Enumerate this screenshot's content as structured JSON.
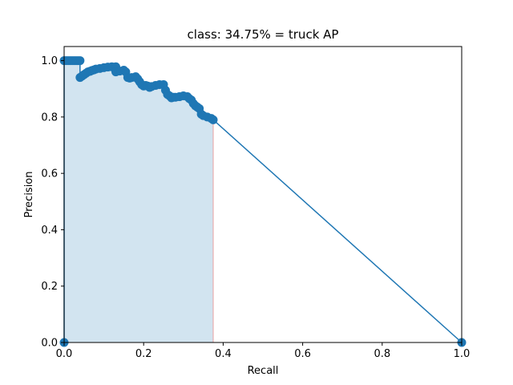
{
  "chart_data": {
    "type": "line",
    "title": "class: 34.75% = truck AP",
    "xlabel": "Recall",
    "ylabel": "Precision",
    "xlim": [
      0.0,
      1.0
    ],
    "ylim": [
      0.0,
      1.05
    ],
    "xticks": [
      0.0,
      0.2,
      0.4,
      0.6,
      0.8,
      1.0
    ],
    "yticks": [
      0.0,
      0.2,
      0.4,
      0.6,
      0.8,
      1.0
    ],
    "xtick_labels": [
      "0.0",
      "0.2",
      "0.4",
      "0.6",
      "0.8",
      "1.0"
    ],
    "ytick_labels": [
      "0.0",
      "0.2",
      "0.4",
      "0.6",
      "0.8",
      "1.0"
    ],
    "grid": false,
    "colors": {
      "line": "#1f77b4",
      "fill": "#1f77b4",
      "fill_opacity": 0.2,
      "edge": "#e8a0a0"
    },
    "area_recall_limit": 0.375,
    "series": [
      {
        "x": [
          0.0,
          0.0,
          0.005,
          0.01,
          0.015,
          0.02,
          0.025,
          0.03,
          0.035,
          0.04,
          0.04,
          0.045,
          0.05,
          0.055,
          0.06,
          0.065,
          0.07,
          0.075,
          0.08,
          0.09,
          0.1,
          0.11,
          0.12,
          0.13,
          0.13,
          0.14,
          0.15,
          0.155,
          0.16,
          0.165,
          0.17,
          0.18,
          0.185,
          0.19,
          0.195,
          0.2,
          0.205,
          0.21,
          0.215,
          0.22,
          0.23,
          0.24,
          0.25,
          0.255,
          0.26,
          0.265,
          0.27,
          0.275,
          0.28,
          0.29,
          0.3,
          0.31,
          0.315,
          0.32,
          0.325,
          0.33,
          0.335,
          0.34,
          0.345,
          0.35,
          0.36,
          0.37,
          0.375,
          1.0
        ],
        "y": [
          0.0,
          1.0,
          1.0,
          1.0,
          1.0,
          1.0,
          1.0,
          1.0,
          1.0,
          1.0,
          0.94,
          0.945,
          0.95,
          0.955,
          0.96,
          0.962,
          0.965,
          0.967,
          0.97,
          0.972,
          0.975,
          0.977,
          0.978,
          0.978,
          0.96,
          0.963,
          0.966,
          0.96,
          0.94,
          0.938,
          0.94,
          0.943,
          0.935,
          0.925,
          0.915,
          0.91,
          0.912,
          0.91,
          0.905,
          0.908,
          0.912,
          0.915,
          0.915,
          0.895,
          0.88,
          0.875,
          0.868,
          0.87,
          0.87,
          0.872,
          0.875,
          0.872,
          0.865,
          0.86,
          0.848,
          0.84,
          0.835,
          0.83,
          0.81,
          0.805,
          0.8,
          0.795,
          0.79,
          0.0
        ]
      }
    ]
  }
}
